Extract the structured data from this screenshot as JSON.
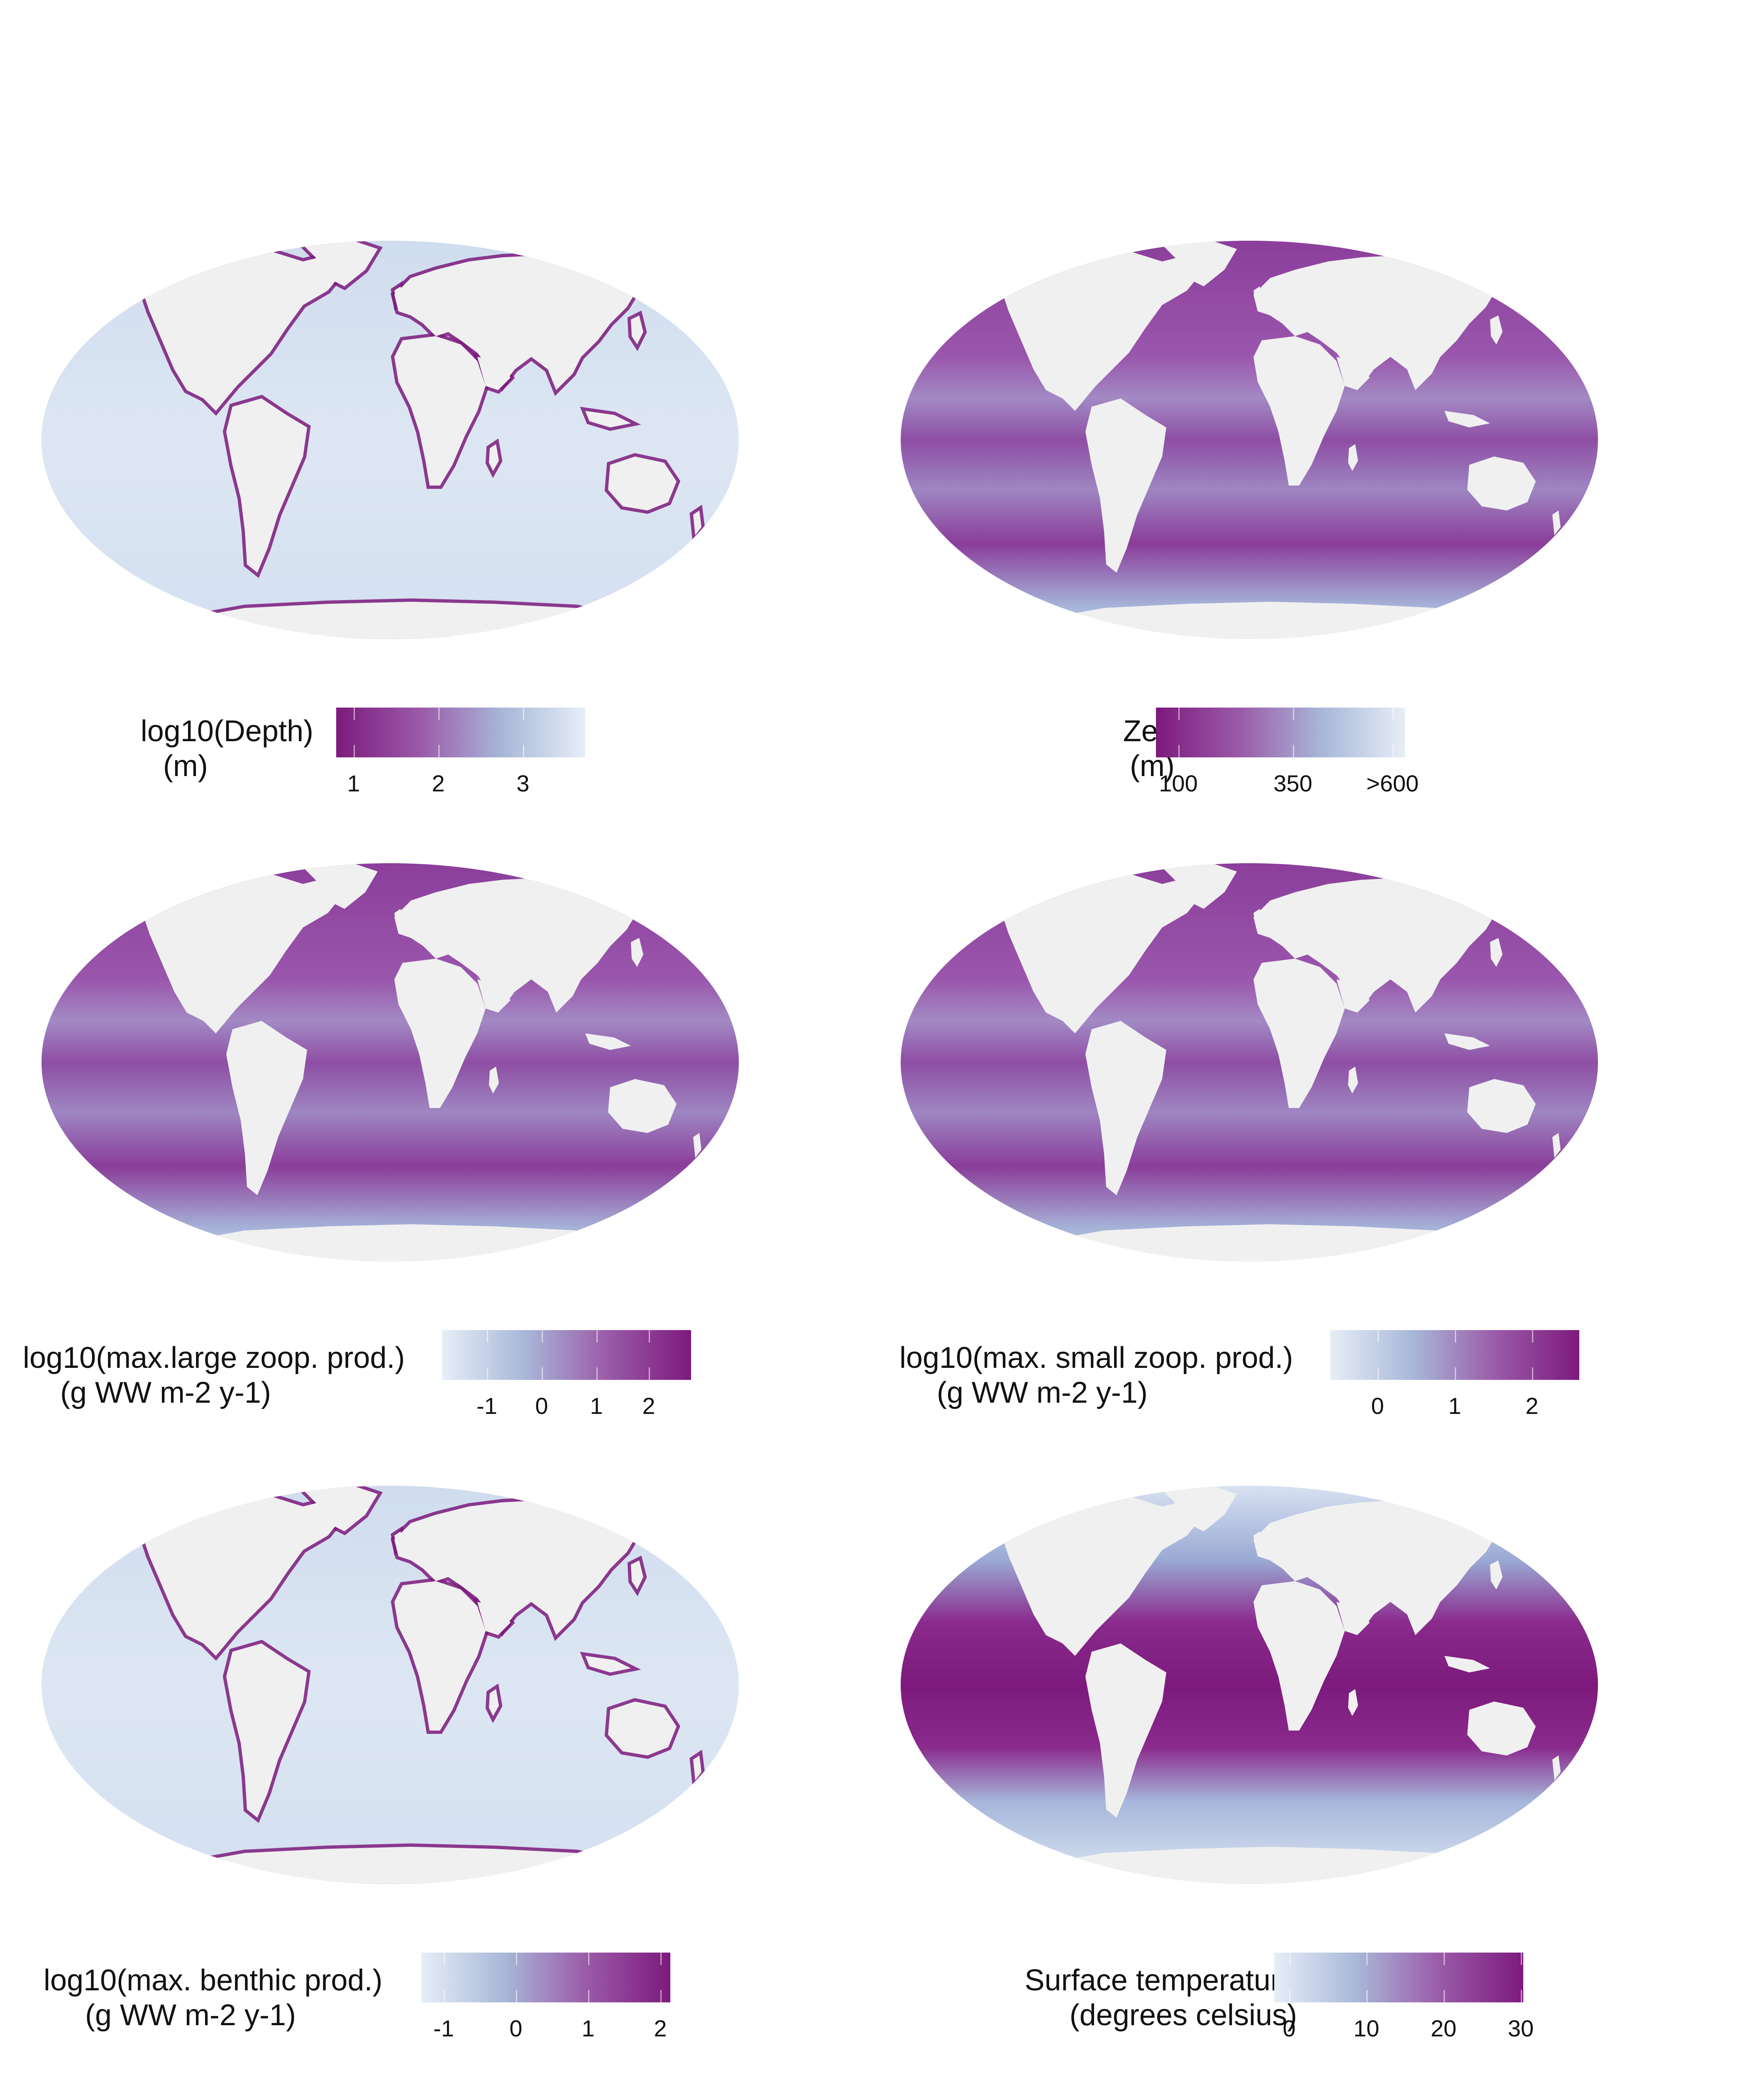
{
  "palette": {
    "ocean_light": "#e6eef7",
    "ocean_mid": "#9fb3d9",
    "ocean_violet": "#8a56a8",
    "ocean_dark": "#7d1a7d",
    "land": "#f0f0f0"
  },
  "panels": [
    {
      "id": "depth",
      "legend_title": [
        "log10(Depth)",
        "(m)"
      ],
      "gradient": [
        "#7d1a7d",
        "#9a5aa8",
        "#a8b7d8",
        "#e6eef7"
      ],
      "ticks": [
        {
          "label": "1",
          "t": 0.07
        },
        {
          "label": "2",
          "t": 0.41
        },
        {
          "label": "3",
          "t": 0.75
        }
      ],
      "map_base": "light"
    },
    {
      "id": "zeu",
      "legend_title": [
        "Zeu",
        "(m)"
      ],
      "gradient": [
        "#7d1a7d",
        "#9a5aa8",
        "#a8b7d8",
        "#e6eef7"
      ],
      "ticks": [
        {
          "label": "100",
          "t": 0.09
        },
        {
          "label": "350",
          "t": 0.55
        },
        {
          "label": ">600",
          "t": 0.95
        }
      ],
      "map_base": "dark"
    },
    {
      "id": "large_zoop",
      "legend_title": [
        "log10(max.large zoop. prod.)",
        "(g WW m-2 y-1)"
      ],
      "gradient": [
        "#e6eef7",
        "#a8b7d8",
        "#9a5aa8",
        "#7d1a7d"
      ],
      "ticks": [
        {
          "label": "-1",
          "t": 0.18
        },
        {
          "label": "0",
          "t": 0.4
        },
        {
          "label": "1",
          "t": 0.62
        },
        {
          "label": "2",
          "t": 0.83
        }
      ],
      "map_base": "dark"
    },
    {
      "id": "small_zoop",
      "legend_title": [
        "log10(max. small zoop. prod.)",
        "(g WW m-2 y-1)"
      ],
      "gradient": [
        "#e6eef7",
        "#a8b7d8",
        "#9a5aa8",
        "#7d1a7d"
      ],
      "ticks": [
        {
          "label": "0",
          "t": 0.19
        },
        {
          "label": "1",
          "t": 0.5
        },
        {
          "label": "2",
          "t": 0.81
        }
      ],
      "map_base": "dark"
    },
    {
      "id": "benthic",
      "legend_title": [
        "log10(max. benthic prod.)",
        "(g WW m-2 y-1)"
      ],
      "gradient": [
        "#e6eef7",
        "#a8b7d8",
        "#9a5aa8",
        "#7d1a7d"
      ],
      "ticks": [
        {
          "label": "-1",
          "t": 0.09
        },
        {
          "label": "0",
          "t": 0.38
        },
        {
          "label": "1",
          "t": 0.67
        },
        {
          "label": "2",
          "t": 0.96
        }
      ],
      "map_base": "light"
    },
    {
      "id": "sst",
      "legend_title": [
        "Surface temperature",
        "(degrees celsius)"
      ],
      "gradient": [
        "#e6eef7",
        "#a8b7d8",
        "#9a5aa8",
        "#7d1a7d"
      ],
      "ticks": [
        {
          "label": "0",
          "t": 0.06
        },
        {
          "label": "10",
          "t": 0.37
        },
        {
          "label": "20",
          "t": 0.68
        },
        {
          "label": "30",
          "t": 0.99
        }
      ],
      "map_base": "equatorial"
    }
  ]
}
